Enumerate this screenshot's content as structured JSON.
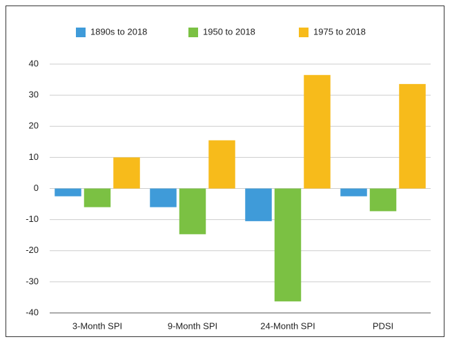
{
  "chart_data": {
    "type": "bar",
    "categories": [
      "3-Month SPI",
      "9-Month SPI",
      "24-Month SPI",
      "PDSI"
    ],
    "series": [
      {
        "name": "1890s to 2018",
        "color": "#3f9bd9",
        "values": [
          -2.5,
          -6,
          -10.5,
          -2.5
        ]
      },
      {
        "name": "1950 to 2018",
        "color": "#7bc143",
        "values": [
          -6,
          -14.7,
          -36.3,
          -7.3
        ]
      },
      {
        "name": "1975 to 2018",
        "color": "#f7bb1b",
        "values": [
          10,
          15.5,
          36.5,
          33.6
        ]
      }
    ],
    "ylim": [
      -40,
      40
    ],
    "yticks": [
      -40,
      -30,
      -20,
      -10,
      0,
      10,
      20,
      30,
      40
    ],
    "grid": true,
    "legend": "top"
  }
}
